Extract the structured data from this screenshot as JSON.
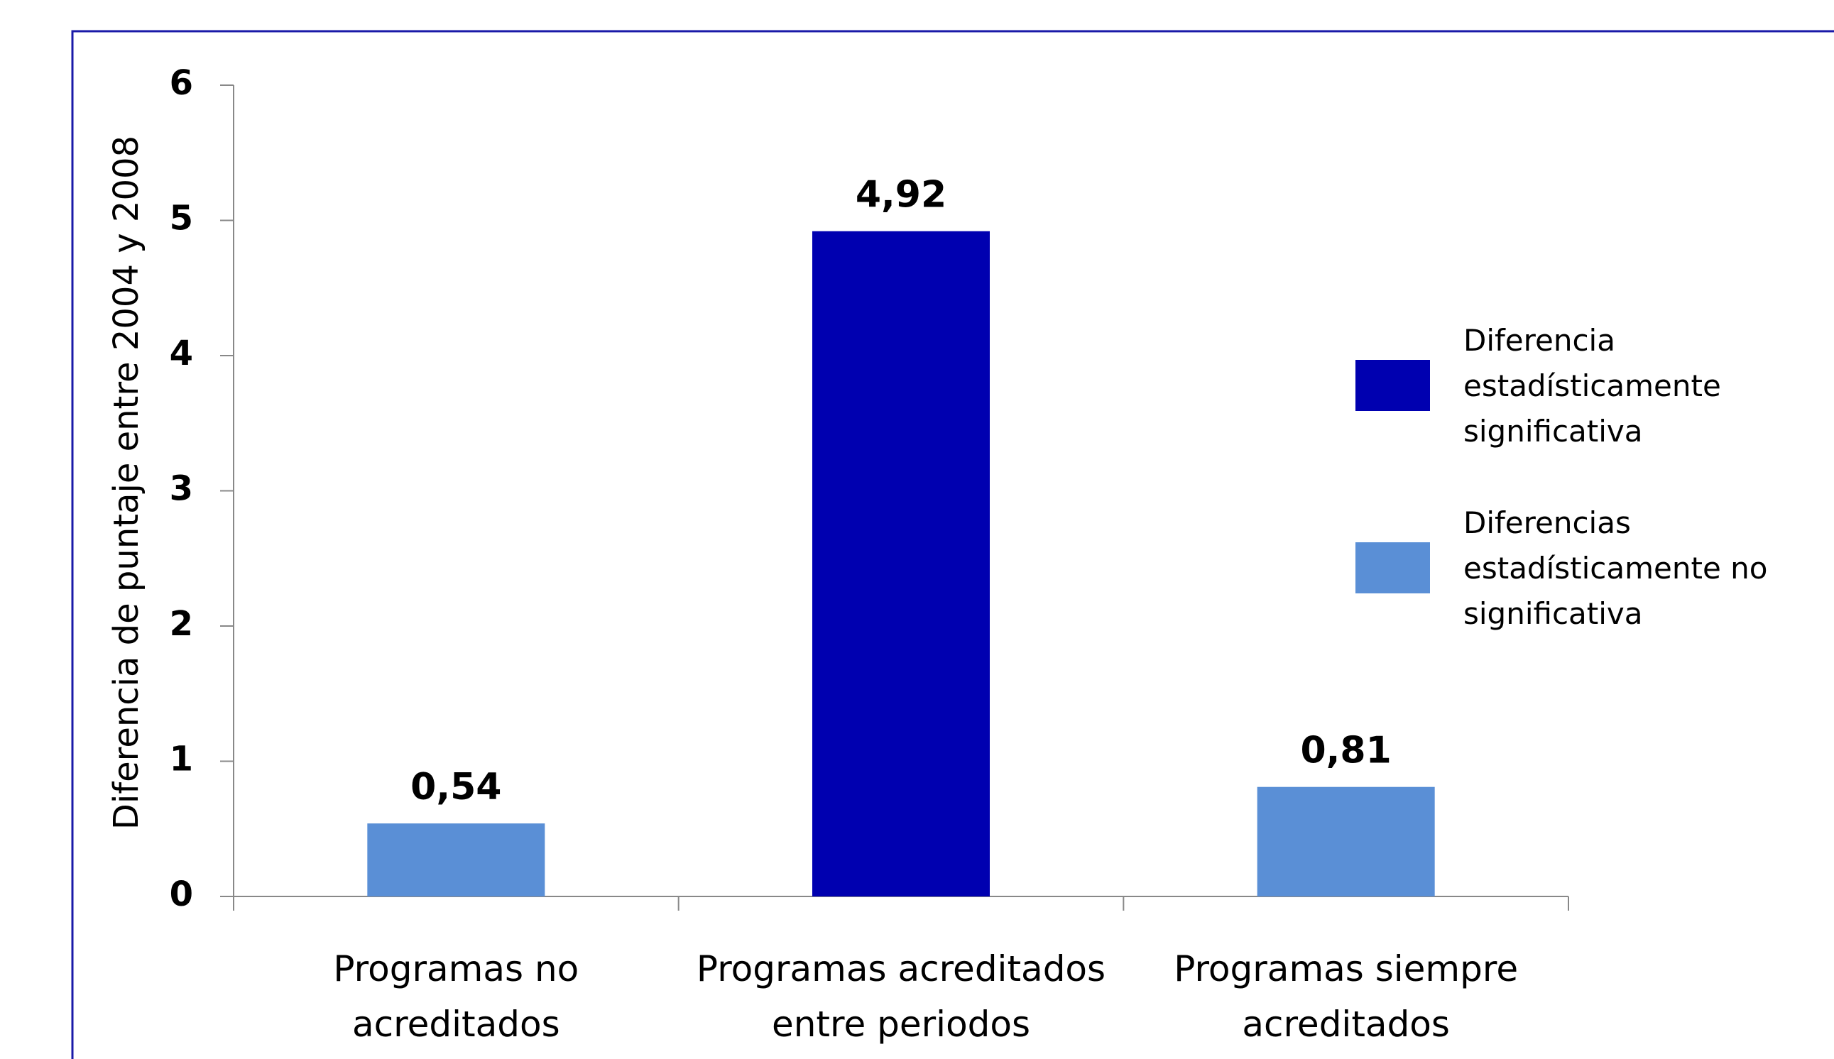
{
  "chart_data": {
    "type": "bar",
    "y_label": "Diferencia de puntaje entre 2004 y 2008",
    "categories": [
      "Programas no\nacreditados",
      "Programas acreditados\nentre periodos",
      "Programas siempre\nacreditados"
    ],
    "series": [
      {
        "name": "Diferencia\nestadísticamente\nsignificativa",
        "color": "#0000b0",
        "values": [
          null,
          4.92,
          null
        ],
        "value_labels": [
          null,
          "4,92",
          null
        ]
      },
      {
        "name": "Diferencias\nestadísticamente no\nsignificativa",
        "color": "#5a8fd6",
        "values": [
          0.54,
          null,
          0.81
        ],
        "value_labels": [
          "0,54",
          null,
          "0,81"
        ]
      }
    ],
    "ylim": [
      0,
      6
    ],
    "yticks": [
      0,
      1,
      2,
      3,
      4,
      5,
      6
    ],
    "grid": false
  }
}
